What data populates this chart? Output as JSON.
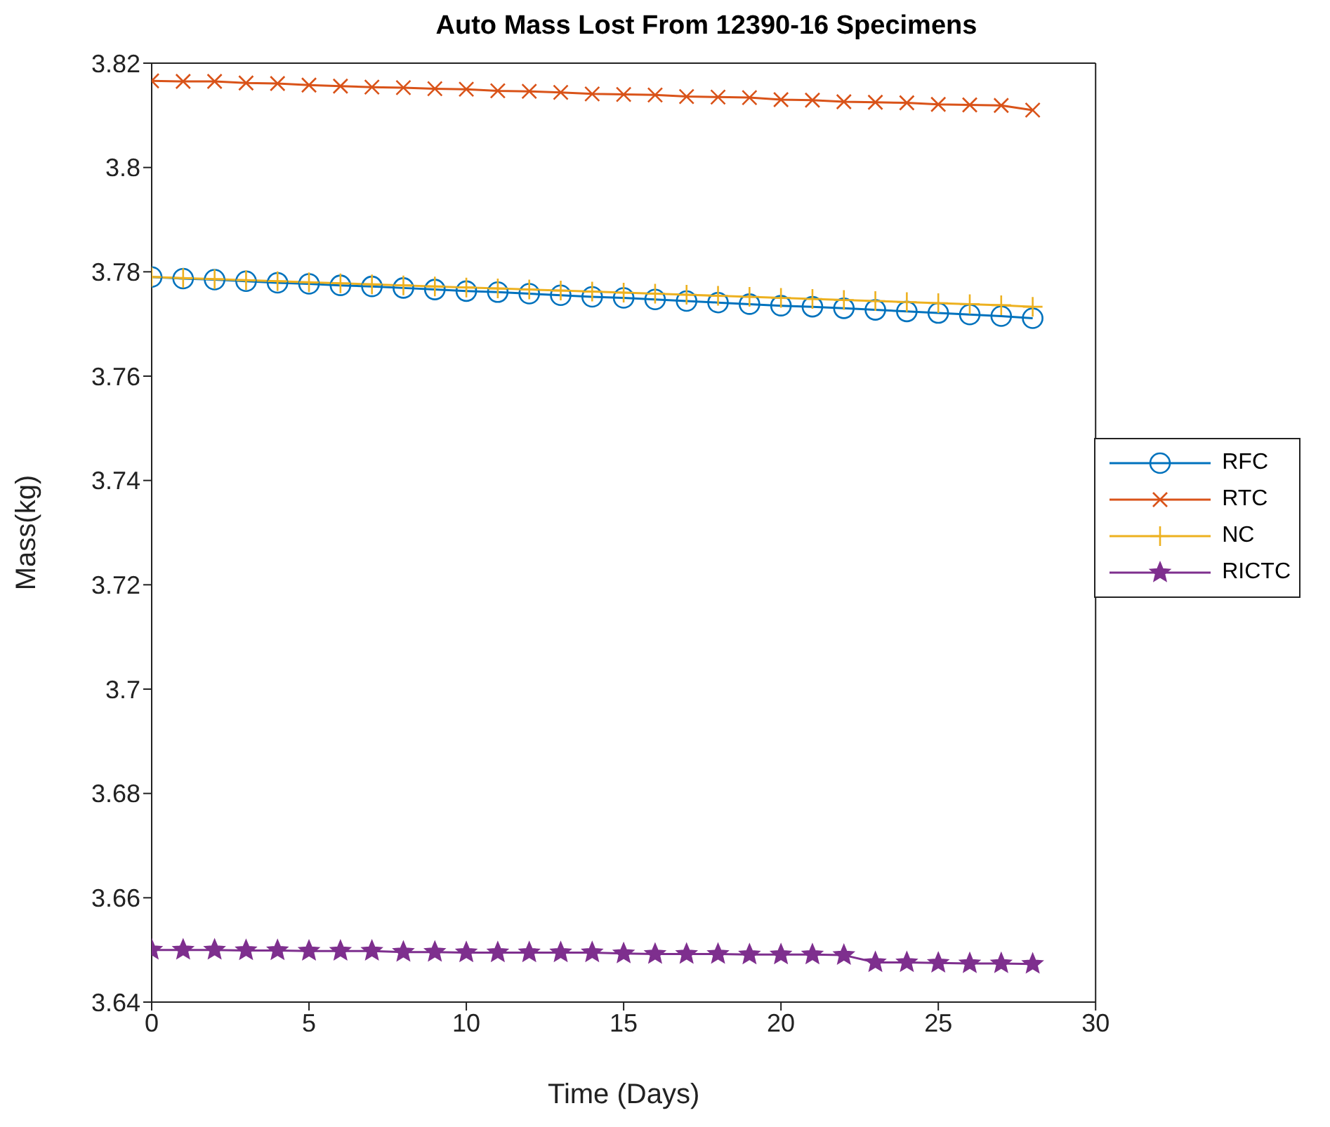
{
  "chart_data": {
    "type": "line",
    "title": "Auto Mass Lost From 12390-16 Specimens",
    "xlabel": "Time (Days)",
    "ylabel": "Mass(kg)",
    "x": [
      0,
      1,
      2,
      3,
      4,
      5,
      6,
      7,
      8,
      9,
      10,
      11,
      12,
      13,
      14,
      15,
      16,
      17,
      18,
      19,
      20,
      21,
      22,
      23,
      24,
      25,
      26,
      27,
      28
    ],
    "series": [
      {
        "name": "RFC",
        "color": "#0072bd",
        "marker": "circle",
        "values": [
          3.779,
          3.7787,
          3.7785,
          3.7782,
          3.7779,
          3.7777,
          3.7774,
          3.7772,
          3.7769,
          3.7766,
          3.7763,
          3.7761,
          3.7758,
          3.7755,
          3.7752,
          3.775,
          3.7747,
          3.7744,
          3.7741,
          3.7738,
          3.7735,
          3.7733,
          3.773,
          3.7727,
          3.7724,
          3.7721,
          3.7718,
          3.7715,
          3.7711
        ]
      },
      {
        "name": "RTC",
        "color": "#d95319",
        "marker": "cross",
        "values": [
          3.8166,
          3.8165,
          3.8165,
          3.8162,
          3.8161,
          3.8158,
          3.8156,
          3.8154,
          3.8153,
          3.8151,
          3.815,
          3.8147,
          3.8146,
          3.8144,
          3.8141,
          3.814,
          3.8139,
          3.8136,
          3.8135,
          3.8134,
          3.813,
          3.8129,
          3.8126,
          3.8125,
          3.8124,
          3.8121,
          3.812,
          3.8119,
          3.811
        ]
      },
      {
        "name": "NC",
        "color": "#edb120",
        "marker": "plus",
        "values": [
          3.779,
          3.7788,
          3.7786,
          3.7784,
          3.7782,
          3.778,
          3.7778,
          3.7776,
          3.7774,
          3.7772,
          3.777,
          3.7768,
          3.7766,
          3.7764,
          3.7762,
          3.776,
          3.7758,
          3.7756,
          3.7754,
          3.7752,
          3.775,
          3.7748,
          3.7746,
          3.7744,
          3.7742,
          3.774,
          3.7738,
          3.7736,
          3.7733
        ]
      },
      {
        "name": "RICTC",
        "color": "#7e2f8e",
        "marker": "star",
        "values": [
          3.65,
          3.65,
          3.65,
          3.6499,
          3.6499,
          3.6498,
          3.6498,
          3.6498,
          3.6496,
          3.6496,
          3.6495,
          3.6495,
          3.6495,
          3.6495,
          3.6495,
          3.6493,
          3.6492,
          3.6492,
          3.6492,
          3.6491,
          3.6491,
          3.6491,
          3.649,
          3.6476,
          3.6476,
          3.6475,
          3.6474,
          3.6474,
          3.6473
        ]
      }
    ],
    "xlim": [
      0,
      30
    ],
    "xticks": [
      0,
      5,
      10,
      15,
      20,
      25,
      30
    ],
    "ylim": [
      3.64,
      3.82
    ],
    "yticks": [
      3.64,
      3.66,
      3.68,
      3.7,
      3.72,
      3.74,
      3.76,
      3.78,
      3.8,
      3.82
    ],
    "grid": false,
    "legend": "right"
  }
}
